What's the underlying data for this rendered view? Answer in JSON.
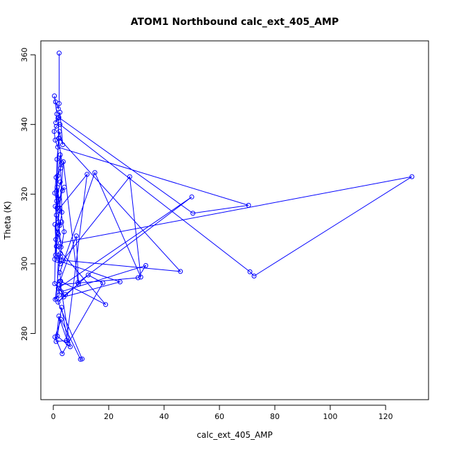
{
  "chart_data": {
    "type": "line",
    "title": "ATOM1 Northbound calc_ext_405_AMP",
    "xlabel": "calc_ext_405_AMP",
    "ylabel": "Theta (K)",
    "xlim": [
      -4.5,
      135.5
    ],
    "ylim": [
      261,
      364
    ],
    "xticks": [
      0,
      20,
      40,
      60,
      80,
      100,
      120
    ],
    "yticks": [
      280,
      300,
      320,
      340,
      360
    ],
    "series_color": "#0000ff",
    "markers": "open-circle",
    "series": [
      {
        "x": [
          2.1,
          2.1,
          1.8,
          0.8,
          0.4,
          1.3,
          0.9,
          1.7,
          2.4,
          3.4,
          2.2,
          1.9,
          3.1,
          2.7,
          1.6,
          1.0,
          0.5,
          1.2,
          2.5,
          3.3,
          4.0,
          2.0,
          1.4,
          0.7,
          1.1,
          2.3,
          3.0,
          1.5,
          0.6,
          0.9,
          1.8,
          2.6,
          129.5,
          72.5,
          71.0,
          2.4,
          1.1,
          0.3,
          0.7,
          1.6,
          70.5,
          50.4,
          2.0,
          0.8,
          2.6,
          3.6,
          45.9,
          2.1,
          1.3,
          0.5,
          2.9,
          33.4,
          30.6,
          2.2,
          3.8,
          24.1,
          1.4,
          1.1,
          18.9,
          2.7,
          2.3,
          15.0,
          31.6,
          27.6,
          2.5,
          1.9,
          1.2,
          10.4,
          9.8,
          2.8,
          0.6,
          3.2,
          17.9,
          12.6,
          1.7,
          4.4,
          9.1,
          8.3,
          2.4,
          6.1,
          1.5,
          3.0,
          5.3,
          2.0,
          1.0,
          4.8,
          12.2,
          2.3,
          3.6,
          8.9,
          50.0,
          1.8,
          2.1,
          0.7,
          2.6,
          3.9,
          1.4,
          2.2,
          0.5,
          3.1,
          2.5,
          1.2,
          1.9,
          2.8,
          2.0
        ],
        "y": [
          360.5,
          346.0,
          344.5,
          346.5,
          348.2,
          343.0,
          340.5,
          341.8,
          343.5,
          334.2,
          338.0,
          336.0,
          329.0,
          327.5,
          325.3,
          324.8,
          320.3,
          318.0,
          323.5,
          321.0,
          322.0,
          318.5,
          316.0,
          316.5,
          314.0,
          311.0,
          312.0,
          309.0,
          311.3,
          307.0,
          308.5,
          306.0,
          325.0,
          296.5,
          297.7,
          340.0,
          339.5,
          338.0,
          335.5,
          333.5,
          316.8,
          314.5,
          342.0,
          302.5,
          302.0,
          301.0,
          297.8,
          336.0,
          330.0,
          294.3,
          292.0,
          299.5,
          296.0,
          294.0,
          290.5,
          294.8,
          301.0,
          305.0,
          288.3,
          295.0,
          297.5,
          326.2,
          296.2,
          325.0,
          300.0,
          302.5,
          290.0,
          272.7,
          272.6,
          284.0,
          279.0,
          274.2,
          294.5,
          296.8,
          289.0,
          291.2,
          294.2,
          308.0,
          295.0,
          276.2,
          279.2,
          287.5,
          277.2,
          285.0,
          277.7,
          278.0,
          325.7,
          316.0,
          329.3,
          294.6,
          319.2,
          293.0,
          291.0,
          289.8,
          303.0,
          309.2,
          322.0,
          315.3,
          301.3,
          314.8,
          331.3,
          320.8,
          312.0,
          304.8,
          305.0
        ]
      }
    ]
  }
}
